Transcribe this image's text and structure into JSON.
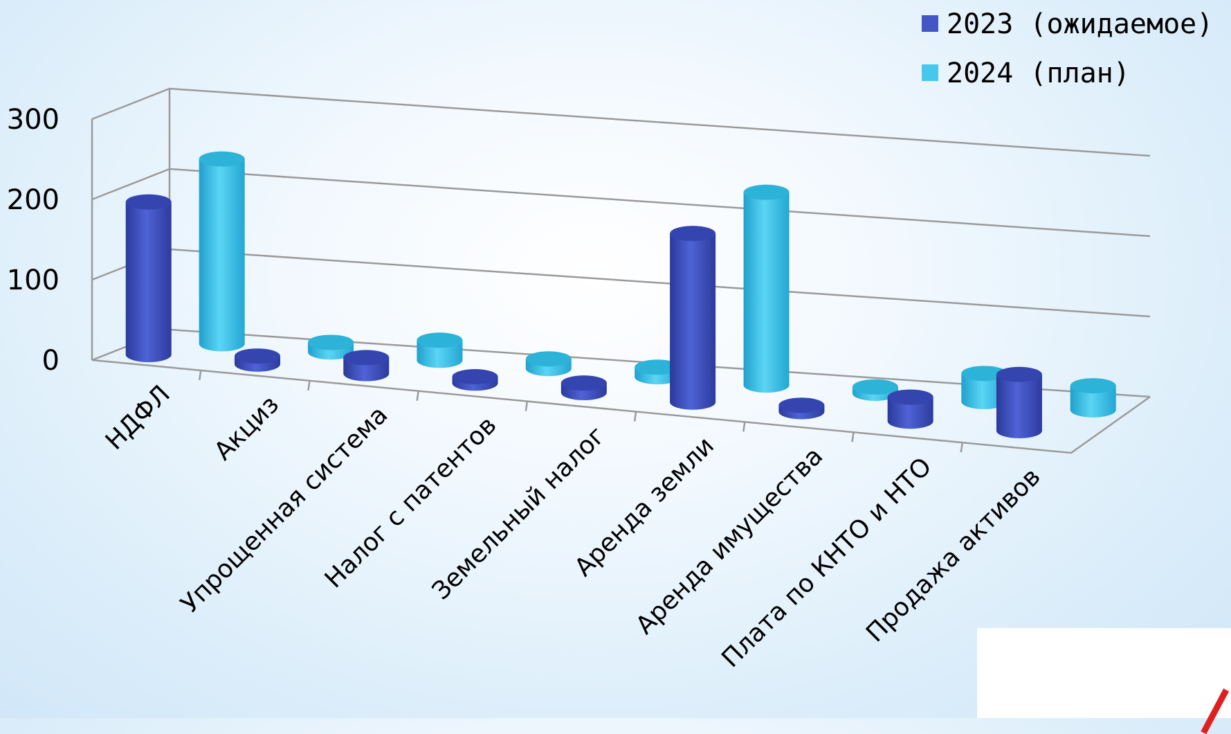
{
  "chart_data": {
    "type": "bar",
    "style": "3d-cylinder",
    "categories": [
      "НДФЛ",
      "Акциз",
      "Упрощенная система",
      "Налог с патентов",
      "Земельный налог",
      "Аренда земли",
      "Аренда имущества",
      "Плата по КНТО и НТО",
      "Продажа активов"
    ],
    "series": [
      {
        "name": "2023 (ожидаемое)",
        "color": "#4456c6",
        "values": [
          190,
          10,
          20,
          8,
          12,
          210,
          8,
          30,
          70
        ]
      },
      {
        "name": "2024 (план)",
        "color": "#46c8ec",
        "values": [
          230,
          12,
          25,
          12,
          12,
          240,
          8,
          35,
          30
        ]
      }
    ],
    "y_ticks": [
      "0",
      "100",
      "200",
      "300"
    ],
    "ylim": [
      0,
      300
    ],
    "grid": true,
    "legend_position": "top-right",
    "title": "",
    "xlabel": "",
    "ylabel": ""
  }
}
